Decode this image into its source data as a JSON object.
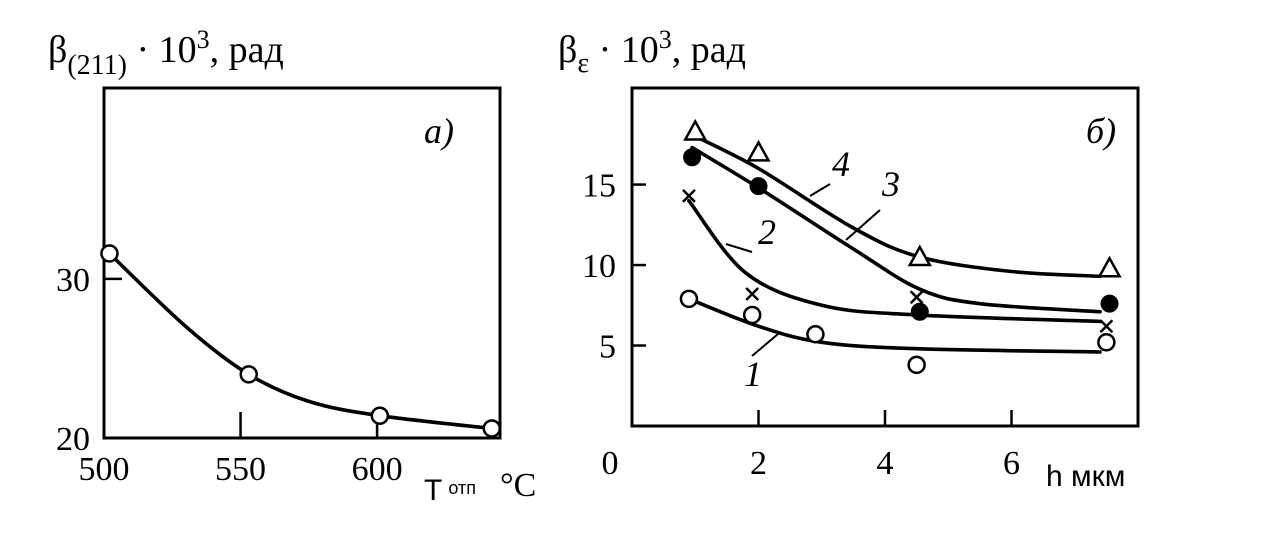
{
  "chart_data": [
    {
      "type": "line",
      "title_main": "β",
      "title_sub": "(211)",
      "title_rest": " · 10",
      "title_sup": "3",
      "title_tail": ", рад",
      "panel_label": "а)",
      "xlabel_main": "Т",
      "xlabel_sub": "отп",
      "xlabel_unit": "°С",
      "xlim": [
        500,
        645
      ],
      "ylim": [
        20,
        42
      ],
      "x_ticks": [
        500,
        550,
        600
      ],
      "x_tick_labels": [
        "500",
        "550",
        "600"
      ],
      "y_ticks": [
        20,
        30
      ],
      "y_tick_labels": [
        "20",
        "30"
      ],
      "series": [
        {
          "marker": "circle-open",
          "points": [
            [
              502,
              31.6
            ],
            [
              553,
              24.0
            ],
            [
              601,
              21.4
            ],
            [
              642,
              20.6
            ]
          ],
          "curve": [
            [
              502,
              31.6
            ],
            [
              530,
              27.0
            ],
            [
              553,
              24.0
            ],
            [
              575,
              22.3
            ],
            [
              601,
              21.4
            ],
            [
              642,
              20.6
            ]
          ]
        }
      ]
    },
    {
      "type": "line",
      "title_main": "β",
      "title_sub": "ε",
      "title_rest": " · 10",
      "title_sup": "3",
      "title_tail": ", рад",
      "panel_label": "б)",
      "xlabel": "h мкм",
      "xlim": [
        0,
        8
      ],
      "ylim": [
        0,
        21
      ],
      "x_ticks": [
        0,
        2,
        4,
        6
      ],
      "x_tick_labels": [
        "0",
        "2",
        "4",
        "6"
      ],
      "y_ticks": [
        5,
        10,
        15
      ],
      "y_tick_labels": [
        "5",
        "10",
        "15"
      ],
      "series": [
        {
          "name": "1",
          "marker": "circle-open",
          "points": [
            [
              0.9,
              7.9
            ],
            [
              1.9,
              6.9
            ],
            [
              2.9,
              5.7
            ],
            [
              4.5,
              3.8
            ],
            [
              7.5,
              5.2
            ]
          ],
          "curve": [
            [
              0.9,
              7.9
            ],
            [
              2.0,
              6.2
            ],
            [
              3.0,
              5.2
            ],
            [
              4.5,
              4.8
            ],
            [
              7.4,
              4.6
            ]
          ]
        },
        {
          "name": "2",
          "marker": "cross",
          "points": [
            [
              0.9,
              14.3
            ],
            [
              1.9,
              8.2
            ],
            [
              4.5,
              8.0
            ],
            [
              7.5,
              6.2
            ]
          ],
          "curve": [
            [
              0.9,
              14.0
            ],
            [
              1.8,
              9.5
            ],
            [
              3.0,
              7.5
            ],
            [
              4.5,
              6.9
            ],
            [
              7.4,
              6.5
            ]
          ]
        },
        {
          "name": "3",
          "marker": "circle-filled",
          "points": [
            [
              0.95,
              16.7
            ],
            [
              2.0,
              14.9
            ],
            [
              4.55,
              7.1
            ],
            [
              7.55,
              7.6
            ]
          ],
          "curve": [
            [
              0.95,
              17.3
            ],
            [
              2.0,
              14.8
            ],
            [
              3.5,
              11.0
            ],
            [
              4.55,
              8.5
            ],
            [
              5.5,
              7.6
            ],
            [
              7.4,
              7.1
            ]
          ]
        },
        {
          "name": "4",
          "marker": "triangle-open",
          "points": [
            [
              1.0,
              18.3
            ],
            [
              2.0,
              17.0
            ],
            [
              4.55,
              10.5
            ],
            [
              7.55,
              9.8
            ]
          ],
          "curve": [
            [
              1.0,
              18.0
            ],
            [
              2.0,
              16.0
            ],
            [
              3.5,
              12.3
            ],
            [
              4.55,
              10.5
            ],
            [
              6.0,
              9.6
            ],
            [
              7.4,
              9.3
            ]
          ]
        }
      ],
      "series_labels": [
        "1",
        "2",
        "3",
        "4"
      ]
    }
  ]
}
